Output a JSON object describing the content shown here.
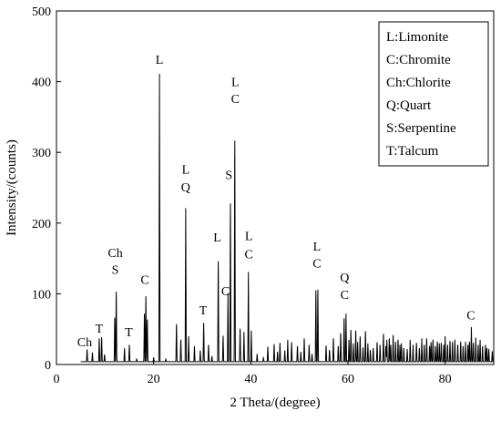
{
  "chart_data": {
    "type": "line",
    "xlabel": "2 Theta/(degree)",
    "ylabel": "Intensity/(counts)",
    "xlim": [
      0,
      90
    ],
    "ylim": [
      0,
      500
    ],
    "xticks": [
      "0",
      "20",
      "40",
      "60",
      "80"
    ],
    "yticks": [
      "0",
      "100",
      "200",
      "300",
      "400",
      "500"
    ],
    "grid": false,
    "legend_position": "top-right",
    "legend": [
      "L:Limonite",
      "C:Chromite",
      "Ch:Chlorite",
      "Q:Quart",
      "S:Serpentine",
      "T:Talcum"
    ],
    "series": [
      {
        "color": "#000000",
        "baseline": 4,
        "peaks": [
          [
            6.3,
            23
          ],
          [
            7.4,
            17
          ],
          [
            8.8,
            40
          ],
          [
            9.3,
            42
          ],
          [
            12.0,
            72
          ],
          [
            12.3,
            112
          ],
          [
            14.0,
            23
          ],
          [
            15.0,
            30
          ],
          [
            18.1,
            78
          ],
          [
            18.4,
            105
          ],
          [
            18.7,
            69
          ],
          [
            21.2,
            411
          ],
          [
            24.7,
            62
          ],
          [
            25.6,
            38
          ],
          [
            26.6,
            221
          ],
          [
            27.2,
            40
          ],
          [
            28.4,
            26
          ],
          [
            29.6,
            20
          ],
          [
            30.3,
            64
          ],
          [
            31.3,
            30
          ],
          [
            33.3,
            159
          ],
          [
            34.3,
            44
          ],
          [
            35.3,
            101
          ],
          [
            35.8,
            248
          ],
          [
            36.7,
            345
          ],
          [
            37.8,
            55
          ],
          [
            38.6,
            46
          ],
          [
            39.5,
            131
          ],
          [
            40.1,
            48
          ],
          [
            43.5,
            27
          ],
          [
            44.8,
            31
          ],
          [
            46.0,
            33
          ],
          [
            47.6,
            35
          ],
          [
            48.4,
            34
          ],
          [
            49.6,
            28
          ],
          [
            51.0,
            40
          ],
          [
            52.0,
            30
          ],
          [
            53.4,
            114
          ],
          [
            53.8,
            115
          ],
          [
            55.5,
            29
          ],
          [
            57.0,
            40
          ],
          [
            58.5,
            48
          ],
          [
            59.2,
            71
          ],
          [
            59.6,
            72
          ],
          [
            60.6,
            53
          ],
          [
            61.6,
            52
          ],
          [
            62.5,
            43
          ],
          [
            63.6,
            51
          ],
          [
            65.2,
            25
          ],
          [
            66.0,
            34
          ],
          [
            67.3,
            47
          ],
          [
            68.5,
            40
          ],
          [
            69.3,
            45
          ],
          [
            70.3,
            38
          ],
          [
            71.0,
            30
          ],
          [
            72.8,
            35
          ],
          [
            74.1,
            33
          ],
          [
            75.2,
            37
          ],
          [
            76.2,
            40
          ],
          [
            77.5,
            38
          ],
          [
            78.4,
            35
          ],
          [
            79.2,
            33
          ],
          [
            80.0,
            40
          ],
          [
            81.0,
            36
          ],
          [
            82.0,
            38
          ],
          [
            83.2,
            35
          ],
          [
            84.2,
            32
          ],
          [
            85.4,
            53
          ],
          [
            86.3,
            38
          ],
          [
            87.2,
            35
          ],
          [
            89.0,
            22
          ],
          [
            89.7,
            20
          ]
        ],
        "noise_peaks": [
          [
            9.9,
            15
          ],
          [
            16.5,
            8
          ],
          [
            20.0,
            10
          ],
          [
            22.5,
            8
          ],
          [
            32.0,
            12
          ],
          [
            41.3,
            15
          ],
          [
            42.6,
            10
          ],
          [
            45.5,
            18
          ],
          [
            47.0,
            20
          ],
          [
            50.3,
            18
          ],
          [
            52.6,
            16
          ],
          [
            56.2,
            22
          ],
          [
            58.0,
            28
          ],
          [
            60.2,
            35
          ],
          [
            61.1,
            30
          ],
          [
            62.0,
            32
          ],
          [
            63.1,
            26
          ],
          [
            64.1,
            30
          ],
          [
            64.6,
            22
          ],
          [
            66.6,
            30
          ],
          [
            67.8,
            28
          ],
          [
            68.0,
            35
          ],
          [
            68.8,
            30
          ],
          [
            69.8,
            32
          ],
          [
            70.7,
            28
          ],
          [
            71.5,
            25
          ],
          [
            72.2,
            22
          ],
          [
            73.4,
            28
          ],
          [
            74.7,
            25
          ],
          [
            75.7,
            30
          ],
          [
            76.8,
            28
          ],
          [
            77.1,
            34
          ],
          [
            78.0,
            28
          ],
          [
            78.8,
            30
          ],
          [
            79.7,
            28
          ],
          [
            80.5,
            30
          ],
          [
            81.5,
            32
          ],
          [
            82.6,
            30
          ],
          [
            83.7,
            28
          ],
          [
            84.7,
            30
          ],
          [
            85.0,
            35
          ],
          [
            85.8,
            33
          ],
          [
            86.8,
            30
          ],
          [
            87.7,
            28
          ],
          [
            88.3,
            30
          ],
          [
            88.6,
            25
          ]
        ]
      }
    ],
    "annotations": [
      {
        "text": "Ch",
        "x": 5.8,
        "y": 26
      },
      {
        "text": "T",
        "x": 8.8,
        "y": 45
      },
      {
        "text": "Ch",
        "x": 12.1,
        "y": 152
      },
      {
        "text": "S",
        "x": 12.1,
        "y": 128
      },
      {
        "text": "T",
        "x": 14.9,
        "y": 40
      },
      {
        "text": "C",
        "x": 18.2,
        "y": 114
      },
      {
        "text": "L",
        "x": 21.2,
        "y": 425
      },
      {
        "text": "L",
        "x": 26.6,
        "y": 270
      },
      {
        "text": "Q",
        "x": 26.6,
        "y": 245
      },
      {
        "text": "T",
        "x": 30.2,
        "y": 71
      },
      {
        "text": "L",
        "x": 33.1,
        "y": 174
      },
      {
        "text": "C",
        "x": 34.8,
        "y": 98
      },
      {
        "text": "S",
        "x": 35.5,
        "y": 262
      },
      {
        "text": "L",
        "x": 36.8,
        "y": 394
      },
      {
        "text": "C",
        "x": 36.8,
        "y": 370
      },
      {
        "text": "L",
        "x": 39.6,
        "y": 176
      },
      {
        "text": "C",
        "x": 39.6,
        "y": 150
      },
      {
        "text": "L",
        "x": 53.6,
        "y": 161
      },
      {
        "text": "C",
        "x": 53.6,
        "y": 137
      },
      {
        "text": "Q",
        "x": 59.3,
        "y": 117
      },
      {
        "text": "C",
        "x": 59.3,
        "y": 93
      },
      {
        "text": "C",
        "x": 85.3,
        "y": 64
      }
    ]
  }
}
